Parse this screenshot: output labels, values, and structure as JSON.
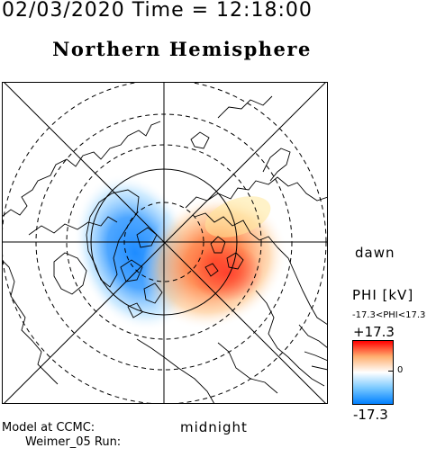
{
  "header": {
    "datetime": "02/03/2020 Time = 12:18:00",
    "hemisphere": "Northern Hemisphere"
  },
  "map": {
    "orientation": {
      "right_label": "dawn",
      "bottom_label": "midnight"
    },
    "projection": "polar-stereographic-north",
    "patterns": [
      {
        "name": "negative-cell",
        "sign": "negative",
        "color": "#1e8cff"
      },
      {
        "name": "positive-cell",
        "sign": "positive",
        "color": "#ff6040"
      }
    ]
  },
  "colorbar": {
    "label": "PHI [kV]",
    "range_text": "-17.3<PHI<17.3",
    "max_label": "+17.3",
    "zero_label": "0",
    "min_label": "-17.3",
    "max_color": "#ff0000",
    "mid_color": "#ffffff",
    "min_color": "#0080ff"
  },
  "footer": {
    "model_line": "Model at CCMC:",
    "run_line": "Weimer_05 Run:"
  }
}
